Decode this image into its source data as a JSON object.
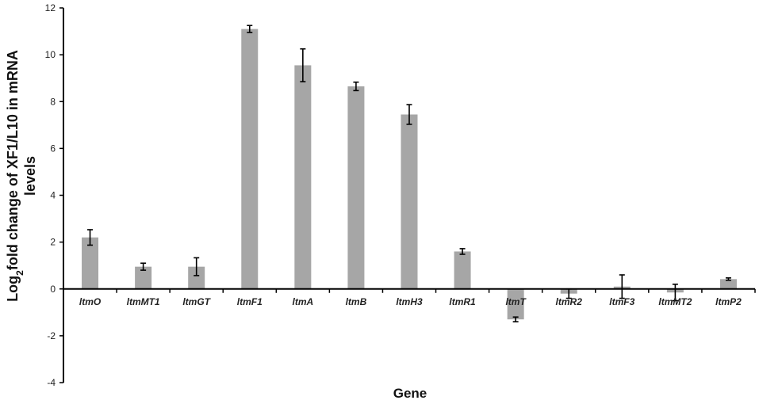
{
  "chart_data": {
    "type": "bar",
    "title": "",
    "xlabel": "Gene",
    "ylabel_line1_main": "Log",
    "ylabel_line1_sub": "2",
    "ylabel_line1_rest": "fold change of XF1/L10 in mRNA",
    "ylabel_line2": "levels",
    "ylim": [
      -4,
      12
    ],
    "yticks": [
      "-4",
      "-2",
      "0",
      "2",
      "4",
      "6",
      "8",
      "10",
      "12"
    ],
    "categories": [
      "ltmO",
      "ltmMT1",
      "ltmGT",
      "ltmF1",
      "ltmA",
      "ltmB",
      "ltmH3",
      "ltmR1",
      "ltmT",
      "ltmR2",
      "ltmF3",
      "ltmMT2",
      "ltmP2"
    ],
    "values": [
      2.2,
      0.95,
      0.95,
      11.1,
      9.55,
      8.65,
      7.45,
      1.6,
      -1.3,
      -0.2,
      0.1,
      -0.15,
      0.42
    ],
    "errors": [
      0.33,
      0.15,
      0.38,
      0.15,
      0.7,
      0.18,
      0.42,
      0.12,
      0.1,
      0.2,
      0.5,
      0.35,
      0.05
    ],
    "bar_color": "#a6a6a6",
    "grid": false,
    "legend": "none"
  }
}
